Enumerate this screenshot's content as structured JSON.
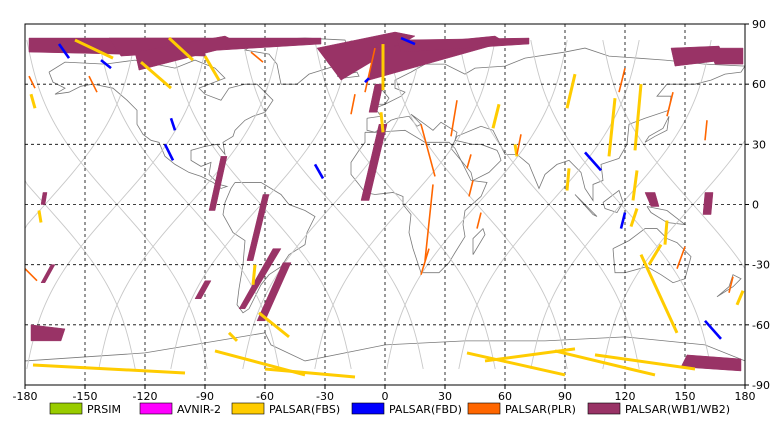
{
  "map": {
    "projection": "equirectangular",
    "x_axis": {
      "min": -180,
      "max": 180,
      "ticks": [
        -180,
        -150,
        -120,
        -90,
        -60,
        -30,
        0,
        30,
        60,
        90,
        120,
        150,
        180
      ],
      "tick_labels": [
        "-180",
        "-150",
        "-120",
        "-90",
        "-60",
        "-30",
        "0",
        "30",
        "60",
        "90",
        "120",
        "150",
        "180"
      ]
    },
    "y_axis": {
      "min": -90,
      "max": 90,
      "ticks": [
        90,
        60,
        30,
        0,
        -30,
        -60,
        -90
      ],
      "tick_labels": [
        "90",
        "60",
        "30",
        "0",
        "-30",
        "-60",
        "-90"
      ]
    },
    "grid": true,
    "grid_style": "dashed",
    "colors": {
      "frame": "#000000",
      "grid": "#000000",
      "coastline": "#7a7a7a",
      "orbit": "#c8c8c8"
    }
  },
  "legend": {
    "placement": "bottom",
    "items": [
      {
        "label": "PRSIM",
        "color": "#99cc00"
      },
      {
        "label": "AVNIR-2",
        "color": "#ff00ff"
      },
      {
        "label": "PALSAR(FBS)",
        "color": "#ffcc00"
      },
      {
        "label": "PALSAR(FBD)",
        "color": "#0000ff"
      },
      {
        "label": "PALSAR(PLR)",
        "color": "#ff6600"
      },
      {
        "label": "PALSAR(WB1/WB2)",
        "color": "#993366"
      }
    ]
  },
  "observations": {
    "wb": [
      [
        [
          -178,
          83
        ],
        [
          -90,
          83
        ],
        [
          -90,
          74
        ],
        [
          -178,
          76
        ]
      ],
      [
        [
          -138,
          83
        ],
        [
          -32,
          83
        ],
        [
          -32,
          80
        ],
        [
          -132,
          74
        ]
      ],
      [
        [
          -125,
          76
        ],
        [
          -80,
          84
        ],
        [
          -72,
          80
        ],
        [
          -123,
          67
        ]
      ],
      [
        [
          -34,
          78
        ],
        [
          5,
          86
        ],
        [
          15,
          84
        ],
        [
          -22,
          62
        ]
      ],
      [
        [
          -6,
          78
        ],
        [
          55,
          84
        ],
        [
          60,
          81
        ],
        [
          -8,
          62
        ]
      ],
      [
        [
          6,
          82
        ],
        [
          72,
          83
        ],
        [
          72,
          80
        ],
        [
          8,
          76
        ]
      ],
      [
        [
          -5,
          60
        ],
        [
          -1,
          60
        ],
        [
          -4,
          46
        ],
        [
          -8,
          46
        ]
      ],
      [
        [
          -3,
          40
        ],
        [
          1,
          40
        ],
        [
          -8,
          2
        ],
        [
          -12,
          2
        ]
      ],
      [
        [
          -61,
          5
        ],
        [
          -58,
          5
        ],
        [
          -66,
          -28
        ],
        [
          -69,
          -28
        ]
      ],
      [
        [
          -51,
          -29
        ],
        [
          -47,
          -29
        ],
        [
          -60,
          -58
        ],
        [
          -64,
          -58
        ]
      ],
      [
        [
          -82,
          24
        ],
        [
          -79,
          24
        ],
        [
          -85,
          -3
        ],
        [
          -88,
          -3
        ]
      ],
      [
        [
          -56,
          -22
        ],
        [
          -52,
          -22
        ],
        [
          -70,
          -52
        ],
        [
          -73,
          -52
        ]
      ],
      [
        [
          -90,
          -38
        ],
        [
          -87,
          -38
        ],
        [
          -92,
          -47
        ],
        [
          -95,
          -47
        ]
      ],
      [
        [
          -171,
          6
        ],
        [
          -169,
          6
        ],
        [
          -170,
          0
        ],
        [
          -172,
          0
        ]
      ],
      [
        [
          -167,
          -30
        ],
        [
          -165,
          -30
        ],
        [
          -170,
          -39
        ],
        [
          -172,
          -39
        ]
      ],
      [
        [
          -177,
          -60
        ],
        [
          -160,
          -62
        ],
        [
          -162,
          -68
        ],
        [
          -177,
          -68
        ]
      ],
      [
        [
          148,
          -81
        ],
        [
          178,
          -83
        ],
        [
          178,
          -77
        ],
        [
          151,
          -75
        ]
      ],
      [
        [
          130,
          6
        ],
        [
          135,
          6
        ],
        [
          137,
          -1
        ],
        [
          133,
          -1
        ]
      ],
      [
        [
          160,
          6
        ],
        [
          164,
          6
        ],
        [
          163,
          -5
        ],
        [
          159,
          -5
        ]
      ],
      [
        [
          143,
          78
        ],
        [
          167,
          79
        ],
        [
          170,
          72
        ],
        [
          145,
          69
        ]
      ],
      [
        [
          162,
          78
        ],
        [
          179,
          78
        ],
        [
          179,
          70
        ],
        [
          165,
          70
        ]
      ]
    ],
    "fbs": [
      [
        [
          -90,
          74
        ],
        [
          -83,
          62
        ]
      ],
      [
        [
          -122,
          71
        ],
        [
          -107,
          58
        ]
      ],
      [
        [
          -108,
          83
        ],
        [
          -96,
          72
        ]
      ],
      [
        [
          -155,
          82
        ],
        [
          -136,
          73
        ]
      ],
      [
        [
          -177,
          55
        ],
        [
          -175,
          48
        ]
      ],
      [
        [
          -173,
          -3
        ],
        [
          -172,
          -9
        ]
      ],
      [
        [
          -65,
          -30
        ],
        [
          -66,
          -40
        ]
      ],
      [
        [
          -63,
          -54
        ],
        [
          -48,
          -66
        ]
      ],
      [
        [
          -78,
          -64
        ],
        [
          -74,
          -68
        ]
      ],
      [
        [
          -85,
          -73
        ],
        [
          -40,
          -85
        ]
      ],
      [
        [
          -60,
          -82
        ],
        [
          -15,
          -86
        ]
      ],
      [
        [
          -176,
          -80
        ],
        [
          -100,
          -84
        ]
      ],
      [
        [
          50,
          -78
        ],
        [
          95,
          -72
        ]
      ],
      [
        [
          41,
          -74
        ],
        [
          90,
          -85
        ]
      ],
      [
        [
          85,
          -73
        ],
        [
          135,
          -85
        ]
      ],
      [
        [
          105,
          -75
        ],
        [
          155,
          -82
        ]
      ],
      [
        [
          -1,
          80
        ],
        [
          -1,
          57
        ]
      ],
      [
        [
          -2,
          46
        ],
        [
          -1,
          36
        ]
      ],
      [
        [
          65,
          30
        ],
        [
          66,
          24
        ]
      ],
      [
        [
          57,
          50
        ],
        [
          54,
          38
        ]
      ],
      [
        [
          95,
          65
        ],
        [
          91,
          48
        ]
      ],
      [
        [
          92,
          18
        ],
        [
          91,
          7
        ]
      ],
      [
        [
          115,
          53
        ],
        [
          112,
          24
        ]
      ],
      [
        [
          128,
          60
        ],
        [
          125,
          27
        ]
      ],
      [
        [
          126,
          17
        ],
        [
          124,
          2
        ]
      ],
      [
        [
          126,
          -2
        ],
        [
          123,
          -11
        ]
      ],
      [
        [
          128,
          -25
        ],
        [
          146,
          -64
        ]
      ],
      [
        [
          141,
          -8
        ],
        [
          140,
          -20
        ]
      ],
      [
        [
          138,
          -20
        ],
        [
          132,
          -30
        ]
      ],
      [
        [
          179,
          -43
        ],
        [
          176,
          -50
        ]
      ]
    ],
    "fbd": [
      [
        [
          -163,
          80
        ],
        [
          -158,
          73
        ]
      ],
      [
        [
          -142,
          72
        ],
        [
          -137,
          68
        ]
      ],
      [
        [
          -110,
          30
        ],
        [
          -106,
          22
        ]
      ],
      [
        [
          -107,
          43
        ],
        [
          -105,
          37
        ]
      ],
      [
        [
          -35,
          20
        ],
        [
          -31,
          13
        ]
      ],
      [
        [
          8,
          83
        ],
        [
          15,
          80
        ]
      ],
      [
        [
          -10,
          61
        ],
        [
          -8,
          63
        ]
      ],
      [
        [
          100,
          26
        ],
        [
          108,
          17
        ]
      ],
      [
        [
          120,
          -4
        ],
        [
          118,
          -12
        ]
      ],
      [
        [
          168,
          -67
        ],
        [
          160,
          -58
        ]
      ]
    ],
    "plr": [
      [
        [
          -148,
          64
        ],
        [
          -144,
          56
        ]
      ],
      [
        [
          -180,
          -32
        ],
        [
          -174,
          -38
        ]
      ],
      [
        [
          -67,
          76
        ],
        [
          -61,
          71
        ]
      ],
      [
        [
          -178,
          64
        ],
        [
          -175,
          58
        ]
      ],
      [
        [
          -15,
          55
        ],
        [
          -17,
          45
        ]
      ],
      [
        [
          -5,
          78
        ],
        [
          -10,
          56
        ]
      ],
      [
        [
          18,
          40
        ],
        [
          25,
          14
        ]
      ],
      [
        [
          24,
          10
        ],
        [
          20,
          -28
        ]
      ],
      [
        [
          36,
          52
        ],
        [
          33,
          34
        ]
      ],
      [
        [
          43,
          25
        ],
        [
          41,
          18
        ]
      ],
      [
        [
          44,
          12
        ],
        [
          42,
          4
        ]
      ],
      [
        [
          22,
          -22
        ],
        [
          18,
          -35
        ]
      ],
      [
        [
          48,
          -4
        ],
        [
          46,
          -12
        ]
      ],
      [
        [
          68,
          35
        ],
        [
          66,
          25
        ]
      ],
      [
        [
          120,
          68
        ],
        [
          117,
          56
        ]
      ],
      [
        [
          144,
          56
        ],
        [
          141,
          44
        ]
      ],
      [
        [
          161,
          42
        ],
        [
          160,
          32
        ]
      ],
      [
        [
          150,
          -21
        ],
        [
          146,
          -32
        ]
      ],
      [
        [
          174,
          -36
        ],
        [
          172,
          -44
        ]
      ]
    ]
  }
}
